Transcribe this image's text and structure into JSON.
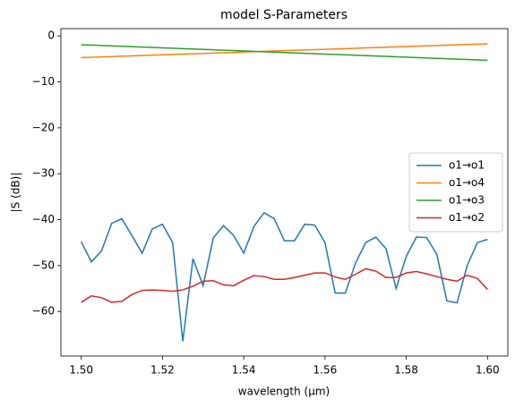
{
  "chart_data": {
    "type": "line",
    "title": "model S-Parameters",
    "x_label": "wavelength (µm)",
    "y_label": "|S (dB)|",
    "x": [
      1.5,
      1.5025,
      1.505,
      1.5075,
      1.51,
      1.5125,
      1.515,
      1.5175,
      1.52,
      1.5225,
      1.525,
      1.5275,
      1.53,
      1.5325,
      1.535,
      1.5375,
      1.54,
      1.5425,
      1.545,
      1.5475,
      1.55,
      1.5525,
      1.555,
      1.5575,
      1.56,
      1.5625,
      1.565,
      1.5675,
      1.57,
      1.5725,
      1.575,
      1.5775,
      1.58,
      1.5825,
      1.585,
      1.5875,
      1.59,
      1.5925,
      1.595,
      1.5975,
      1.6
    ],
    "series": [
      {
        "name": "o1→o1",
        "color": "#1f77b4",
        "values": [
          -44.8,
          -49.2,
          -46.8,
          -40.8,
          -39.8,
          -43.5,
          -47.3,
          -42,
          -41,
          -45,
          -66.5,
          -48.5,
          -54.4,
          -44,
          -41.3,
          -43.4,
          -47.3,
          -41.5,
          -38.5,
          -39.8,
          -44.6,
          -44.6,
          -41,
          -41.2,
          -45,
          -56,
          -56,
          -49.5,
          -45,
          -43.8,
          -46.3,
          -55,
          -48,
          -43.8,
          -43.9,
          -47.5,
          -57.7,
          -58.1,
          -50,
          -45,
          -44.3
        ]
      },
      {
        "name": "o1→o4",
        "color": "#ff7f0e",
        "values": [
          -4.7,
          -4.63,
          -4.55,
          -4.48,
          -4.4,
          -4.33,
          -4.25,
          -4.18,
          -4.1,
          -4.03,
          -3.95,
          -3.88,
          -3.8,
          -3.73,
          -3.65,
          -3.58,
          -3.5,
          -3.43,
          -3.35,
          -3.28,
          -3.2,
          -3.13,
          -3.05,
          -2.98,
          -2.9,
          -2.83,
          -2.75,
          -2.68,
          -2.6,
          -2.53,
          -2.45,
          -2.38,
          -2.3,
          -2.23,
          -2.15,
          -2.08,
          -2,
          -1.93,
          -1.85,
          -1.78,
          -1.7
        ]
      },
      {
        "name": "o1→o3",
        "color": "#2ca02c",
        "values": [
          -1.9,
          -1.99,
          -2.07,
          -2.16,
          -2.24,
          -2.33,
          -2.41,
          -2.5,
          -2.58,
          -2.67,
          -2.75,
          -2.84,
          -2.92,
          -3.01,
          -3.09,
          -3.18,
          -3.26,
          -3.35,
          -3.43,
          -3.52,
          -3.6,
          -3.69,
          -3.77,
          -3.86,
          -3.94,
          -4.03,
          -4.11,
          -4.2,
          -4.28,
          -4.37,
          -4.45,
          -4.54,
          -4.62,
          -4.71,
          -4.79,
          -4.88,
          -4.96,
          -5.05,
          -5.13,
          -5.22,
          -5.3
        ]
      },
      {
        "name": "o1→o2",
        "color": "#d62728",
        "values": [
          -58,
          -56.6,
          -57,
          -58,
          -57.8,
          -56.3,
          -55.4,
          -55.3,
          -55.4,
          -55.6,
          -55.3,
          -54.5,
          -53.4,
          -53.3,
          -54.2,
          -54.4,
          -53.2,
          -52.2,
          -52.4,
          -53,
          -53,
          -52.6,
          -52.1,
          -51.6,
          -51.6,
          -52.5,
          -53,
          -51.9,
          -50.7,
          -51.2,
          -52.6,
          -52.6,
          -51.6,
          -51.3,
          -51.8,
          -52.4,
          -53,
          -53.4,
          -52.1,
          -52.8,
          -55.2
        ]
      }
    ],
    "xlim": [
      1.495,
      1.605
    ],
    "ylim": [
      -69.7,
      1.6
    ],
    "xticks": [
      {
        "value": 1.5,
        "label": "1.50"
      },
      {
        "value": 1.52,
        "label": "1.52"
      },
      {
        "value": 1.54,
        "label": "1.54"
      },
      {
        "value": 1.56,
        "label": "1.56"
      },
      {
        "value": 1.58,
        "label": "1.58"
      },
      {
        "value": 1.6,
        "label": "1.60"
      }
    ],
    "yticks": [
      {
        "value": -60,
        "label": "−60"
      },
      {
        "value": -50,
        "label": "−50"
      },
      {
        "value": -40,
        "label": "−40"
      },
      {
        "value": -30,
        "label": "−30"
      },
      {
        "value": -20,
        "label": "−20"
      },
      {
        "value": -10,
        "label": "−10"
      },
      0
    ],
    "grid": false,
    "legend": "center right"
  }
}
